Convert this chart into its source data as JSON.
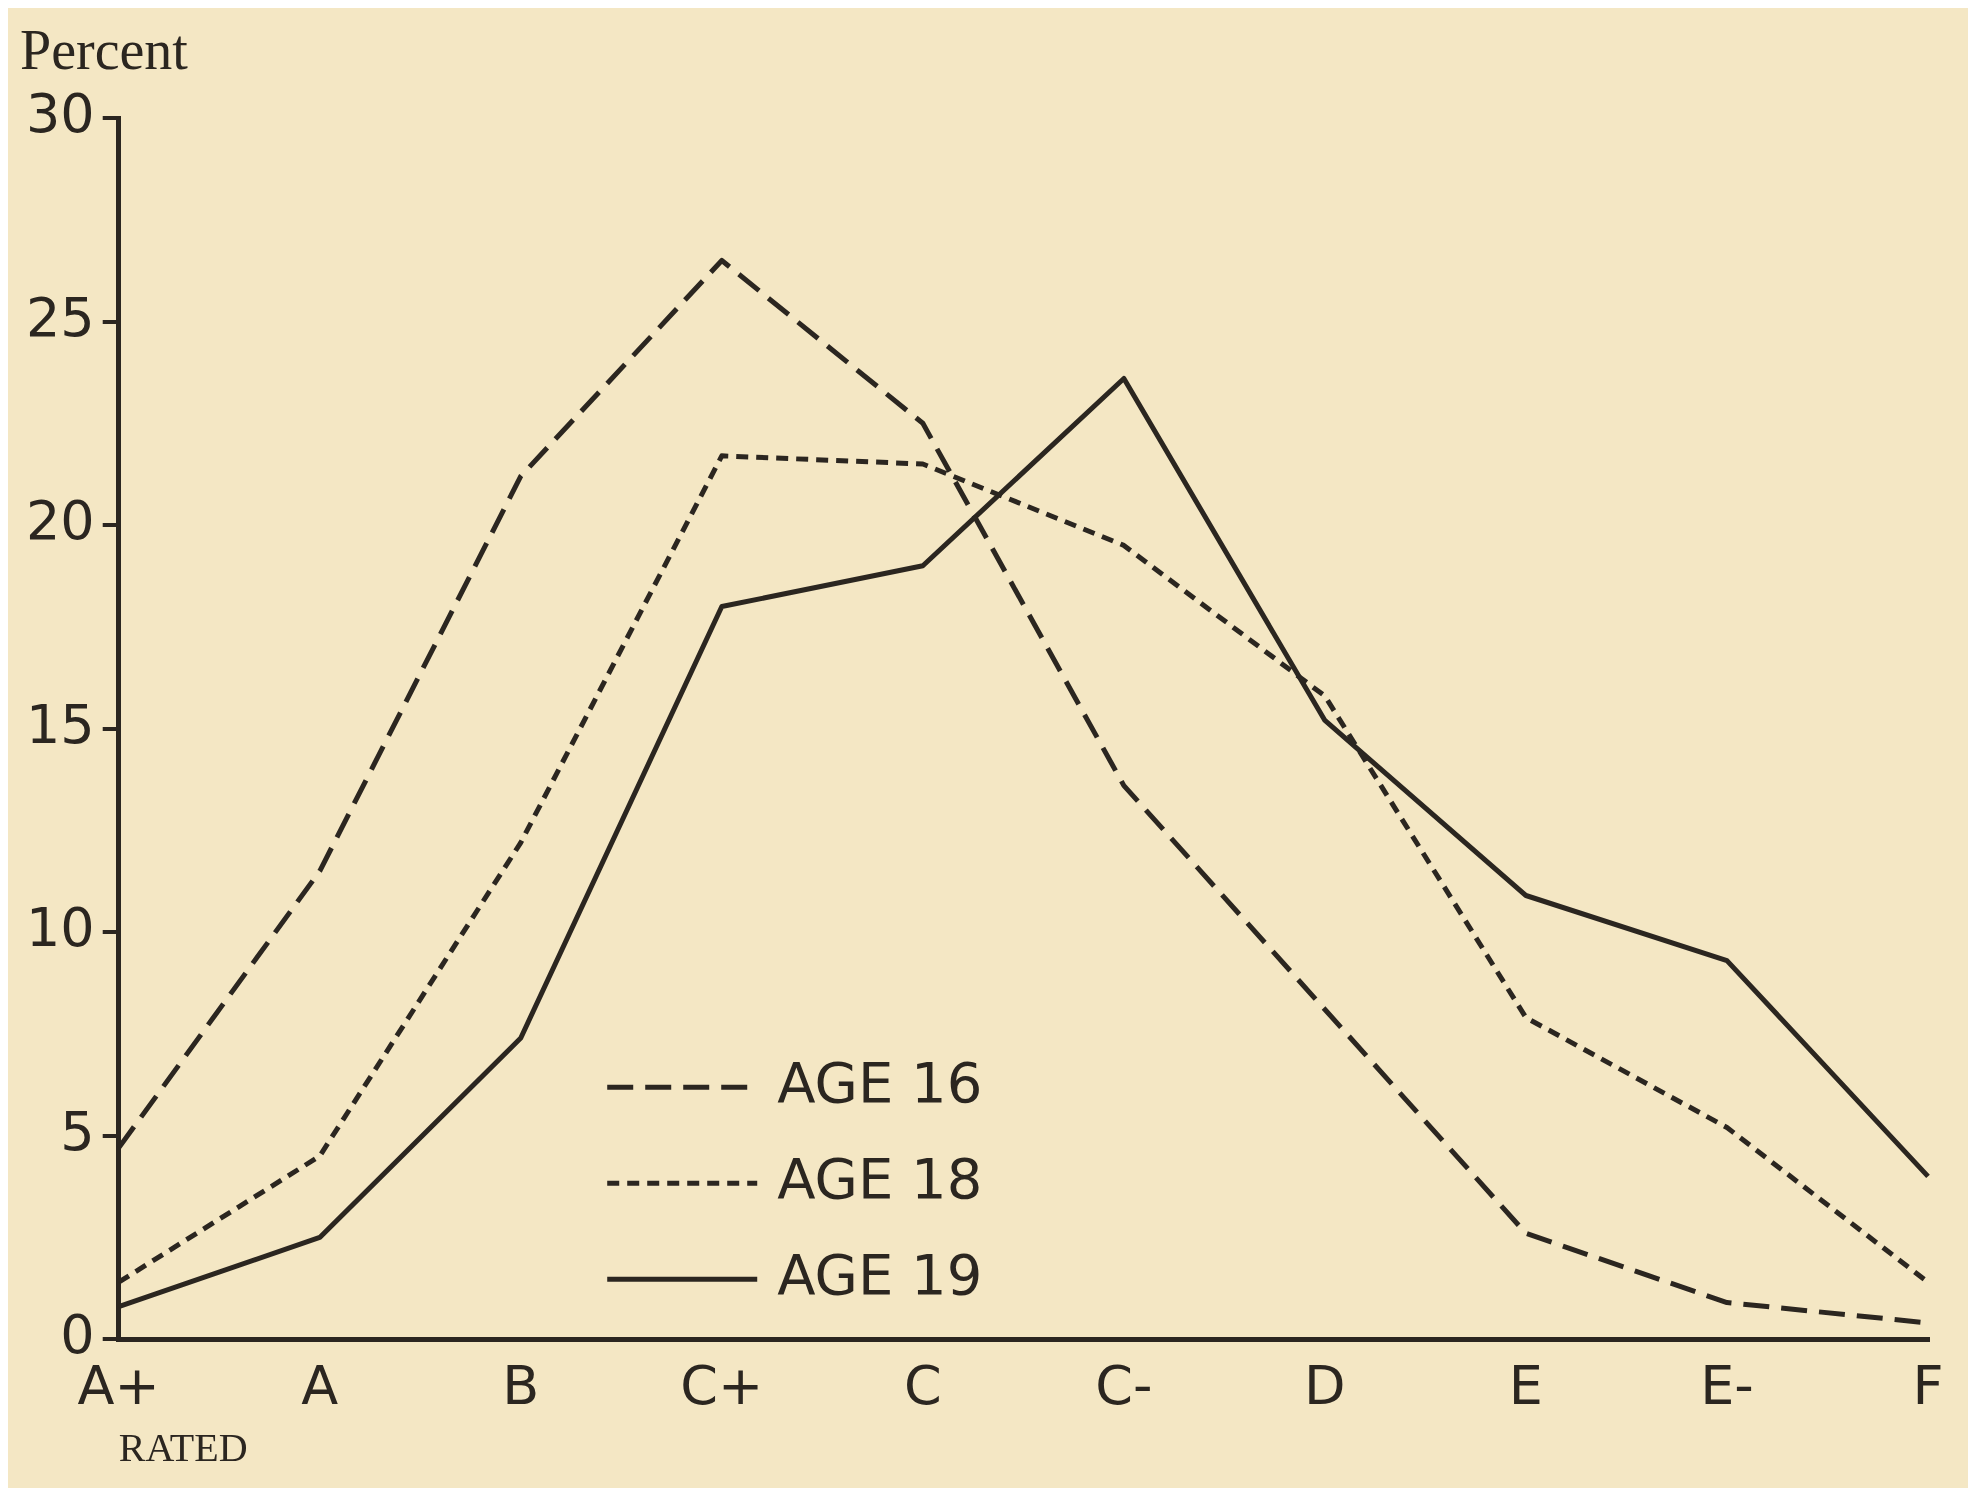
{
  "chart_data": {
    "type": "line",
    "ylabel": "Percent",
    "xlabel": "RATED",
    "categories": [
      "A+",
      "A",
      "B",
      "C+",
      "C",
      "C-",
      "D",
      "E",
      "E-",
      "F"
    ],
    "series": [
      {
        "name": "AGE 16",
        "color": "#2b2620",
        "line_style": "dashed",
        "values": [
          4.7,
          11.5,
          21.2,
          26.5,
          22.5,
          13.6,
          8.1,
          2.6,
          0.9,
          0.4
        ]
      },
      {
        "name": "AGE 18",
        "color": "#2b2620",
        "line_style": "dotted",
        "values": [
          1.4,
          4.5,
          12.2,
          21.7,
          21.5,
          19.5,
          15.8,
          7.9,
          5.2,
          1.4
        ]
      },
      {
        "name": "AGE 19",
        "color": "#2b2620",
        "line_style": "solid",
        "values": [
          0.8,
          2.5,
          7.4,
          18.0,
          19.0,
          23.6,
          15.2,
          10.9,
          9.3,
          4.0
        ]
      }
    ],
    "ylim": [
      0,
      30
    ],
    "yticks": [
      0,
      5,
      10,
      15,
      20,
      25,
      30
    ],
    "grid": false,
    "legend": "bottom",
    "marker": "none"
  }
}
